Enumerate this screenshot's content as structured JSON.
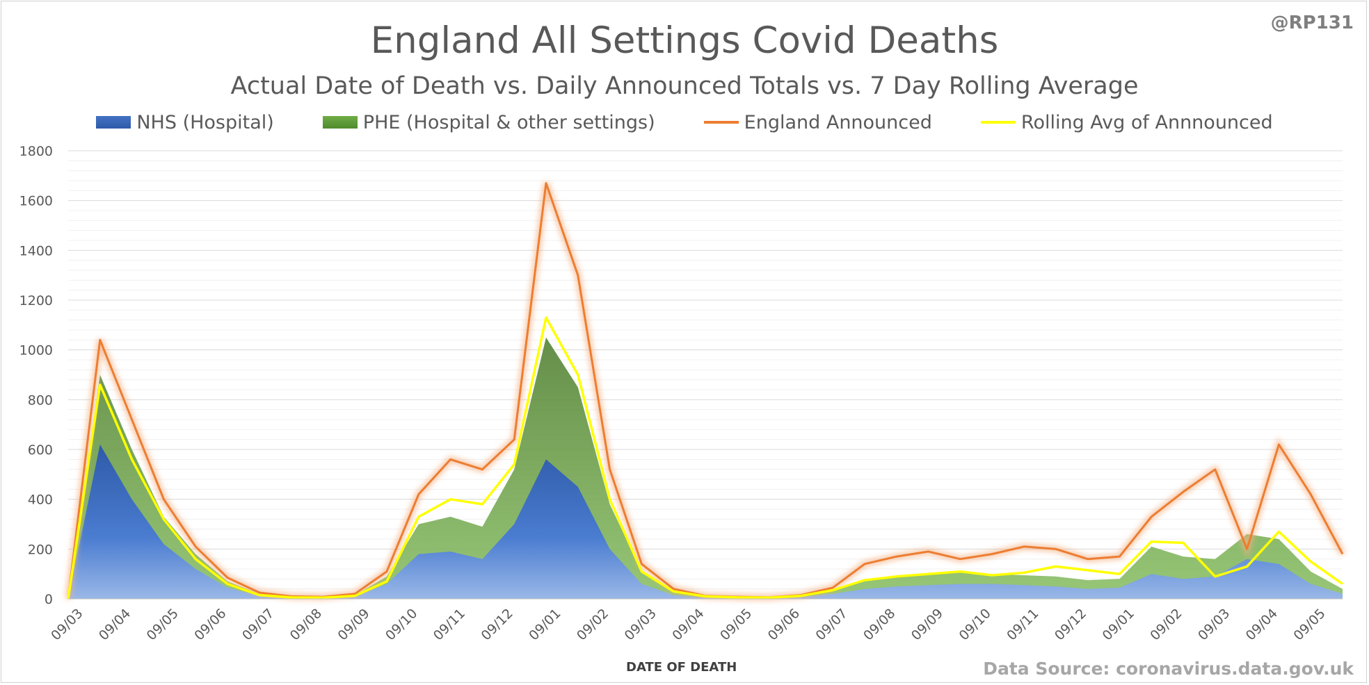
{
  "header": {
    "handle": "@RP131",
    "title": "England All Settings Covid Deaths",
    "subtitle": "Actual Date of Death vs. Daily Announced Totals vs. 7 Day Rolling Average"
  },
  "footer": {
    "source": "Data Source: coronavirus.data.gov.uk"
  },
  "chart_data": {
    "type": "area",
    "xlabel": "DATE OF DEATH",
    "ylabel": "",
    "ylim": [
      0,
      1800
    ],
    "yticks": [
      0,
      200,
      400,
      600,
      800,
      1000,
      1200,
      1400,
      1600,
      1800
    ],
    "grid": true,
    "legend_position": "top",
    "x_tick_labels": [
      "09/03",
      "09/04",
      "09/05",
      "09/06",
      "09/07",
      "09/08",
      "09/09",
      "09/10",
      "09/11",
      "09/12",
      "09/01",
      "09/02",
      "09/03",
      "09/04",
      "09/05",
      "09/06",
      "09/07",
      "09/08",
      "09/09",
      "09/10",
      "09/11",
      "09/12",
      "09/01",
      "09/02",
      "09/03",
      "09/04",
      "09/05"
    ],
    "series": [
      {
        "name": "NHS (Hospital)",
        "kind": "area",
        "color": "#4472c4",
        "values": [
          0,
          620,
          400,
          220,
          120,
          45,
          12,
          5,
          4,
          10,
          60,
          180,
          190,
          160,
          300,
          560,
          450,
          200,
          60,
          15,
          5,
          4,
          3,
          8,
          20,
          40,
          50,
          55,
          60,
          60,
          55,
          50,
          40,
          45,
          100,
          80,
          90,
          160,
          140,
          60,
          20
        ]
      },
      {
        "name": "PHE (Hospital & other settings)",
        "kind": "area",
        "color": "#70ad47",
        "values": [
          0,
          900,
          600,
          330,
          180,
          70,
          20,
          8,
          6,
          15,
          90,
          300,
          330,
          290,
          520,
          1050,
          850,
          380,
          110,
          30,
          10,
          6,
          5,
          12,
          35,
          70,
          90,
          100,
          105,
          100,
          95,
          90,
          75,
          80,
          210,
          170,
          160,
          260,
          240,
          110,
          40
        ]
      },
      {
        "name": "England Announced",
        "kind": "line",
        "color": "#ed7d31",
        "values": [
          0,
          1040,
          720,
          400,
          210,
          85,
          25,
          10,
          8,
          20,
          110,
          420,
          560,
          520,
          640,
          1670,
          1300,
          520,
          140,
          40,
          12,
          8,
          6,
          15,
          45,
          140,
          170,
          190,
          160,
          180,
          210,
          200,
          160,
          170,
          330,
          430,
          520,
          200,
          620,
          420,
          180
        ]
      },
      {
        "name": "Rolling Avg of Annnounced",
        "kind": "line",
        "color": "#ffff00",
        "values": [
          0,
          860,
          560,
          320,
          160,
          60,
          15,
          6,
          5,
          12,
          70,
          330,
          400,
          380,
          540,
          1130,
          900,
          400,
          110,
          30,
          10,
          6,
          5,
          12,
          35,
          75,
          90,
          100,
          110,
          95,
          105,
          130,
          115,
          100,
          230,
          225,
          90,
          130,
          270,
          150,
          60
        ]
      }
    ]
  }
}
